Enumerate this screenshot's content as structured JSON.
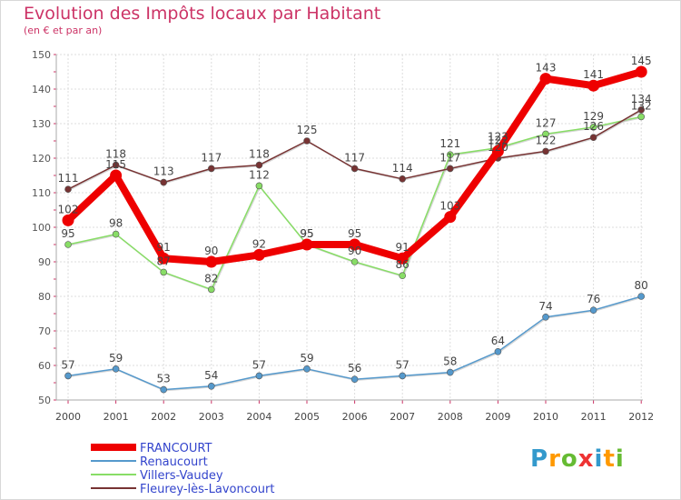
{
  "chart_data": {
    "type": "line",
    "title": "Evolution des Impôts locaux par Habitant",
    "subtitle": "(en € et par an)",
    "xlabel": "",
    "ylabel": "",
    "ylim": [
      50,
      150
    ],
    "yticks": [
      50,
      60,
      70,
      80,
      90,
      100,
      110,
      120,
      130,
      140,
      150
    ],
    "x": [
      "2000",
      "2001",
      "2002",
      "2003",
      "2004",
      "2005",
      "2006",
      "2007",
      "2008",
      "2009",
      "2010",
      "2011",
      "2012"
    ],
    "series": [
      {
        "name": "FRANCOURT",
        "color": "#ee0000",
        "values": [
          102,
          115,
          91,
          90,
          92,
          95,
          95,
          91,
          103,
          122,
          143,
          141,
          145
        ]
      },
      {
        "name": "Renaucourt",
        "color": "#5599cc",
        "values": [
          57,
          59,
          53,
          54,
          57,
          59,
          56,
          57,
          58,
          64,
          74,
          76,
          80
        ]
      },
      {
        "name": "Villers-Vaudey",
        "color": "#88dd66",
        "values": [
          95,
          98,
          87,
          82,
          112,
          95,
          90,
          86,
          121,
          123,
          127,
          129,
          132
        ]
      },
      {
        "name": "Fleurey-lès-Lavoncourt",
        "color": "#773333",
        "values": [
          111,
          118,
          113,
          117,
          118,
          125,
          117,
          114,
          117,
          120,
          122,
          126,
          134
        ]
      }
    ],
    "legend_position": "bottom-left",
    "grid": true
  },
  "brand": {
    "p": "P",
    "r": "r",
    "o": "o",
    "x": "x",
    "i": "i",
    "t": "t",
    "i2": "i"
  }
}
